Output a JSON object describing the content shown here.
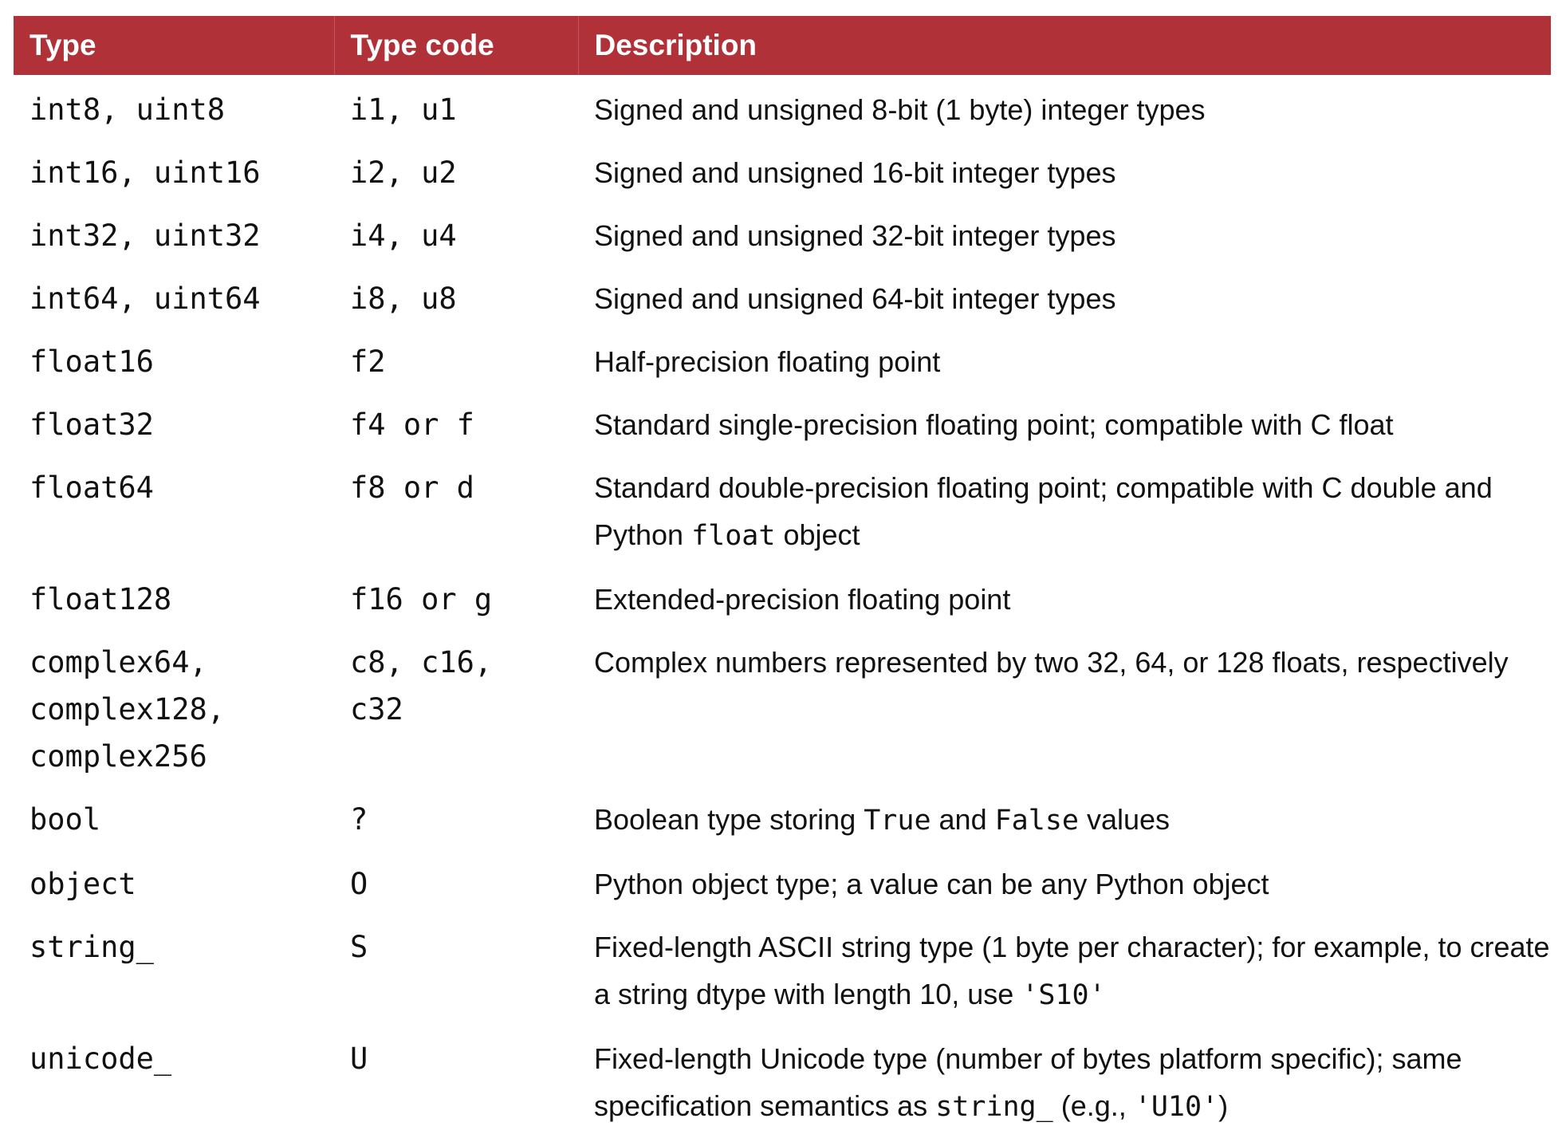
{
  "header": {
    "type": "Type",
    "type_code": "Type code",
    "description": "Description"
  },
  "rows": [
    {
      "type": "int8, uint8",
      "code": "i1, u1",
      "desc": {
        "parts": [
          "Signed and unsigned 8-bit (1 byte) integer types"
        ]
      }
    },
    {
      "type": "int16, uint16",
      "code": "i2, u2",
      "desc": {
        "parts": [
          "Signed and unsigned 16-bit integer types"
        ]
      }
    },
    {
      "type": "int32, uint32",
      "code": "i4, u4",
      "desc": {
        "parts": [
          "Signed and unsigned 32-bit integer types"
        ]
      }
    },
    {
      "type": "int64, uint64",
      "code": "i8, u8",
      "desc": {
        "parts": [
          "Signed and unsigned 64-bit integer types"
        ]
      }
    },
    {
      "type": "float16",
      "code": "f2",
      "desc": {
        "parts": [
          "Half-precision floating point"
        ]
      }
    },
    {
      "type": "float32",
      "code": "f4 or f",
      "desc": {
        "parts": [
          "Standard single-precision floating point; compatible with C float"
        ]
      }
    },
    {
      "type": "float64",
      "code": "f8 or d",
      "desc": {
        "parts": [
          "Standard double-precision floating point; compatible with C double and Python ",
          "float",
          " object"
        ]
      }
    },
    {
      "type": "float128",
      "code": "f16 or g",
      "desc": {
        "parts": [
          "Extended-precision floating point"
        ]
      }
    },
    {
      "type": "complex64,\ncomplex128,\ncomplex256",
      "code": "c8, c16,\nc32",
      "desc": {
        "parts": [
          "Complex numbers represented by two 32, 64, or 128 floats, respectively"
        ]
      }
    },
    {
      "type": "bool",
      "code": "?",
      "desc": {
        "parts": [
          "Boolean type storing ",
          "True",
          " and ",
          "False",
          " values"
        ]
      }
    },
    {
      "type": "object",
      "code": "O",
      "desc": {
        "parts": [
          "Python object type; a value can be any Python object"
        ]
      }
    },
    {
      "type": "string_",
      "code": "S",
      "desc": {
        "parts": [
          "Fixed-length ASCII string type (1 byte per character); for example, to create a string dtype with length 10, use ",
          "'S10'"
        ]
      }
    },
    {
      "type": "unicode_",
      "code": "U",
      "desc": {
        "parts": [
          "Fixed-length Unicode type (number of bytes platform specific); same specification semantics as ",
          "string_",
          " (e.g., ",
          "'U10'",
          ")"
        ]
      }
    }
  ]
}
